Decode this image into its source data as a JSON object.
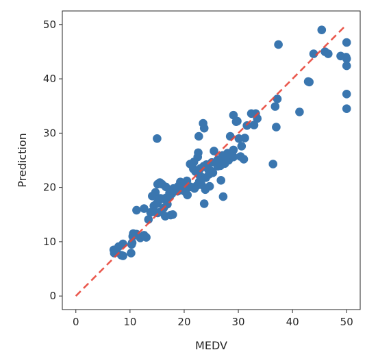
{
  "chart_data": {
    "type": "scatter",
    "title": "",
    "xlabel": "MEDV",
    "ylabel": "Prediction",
    "xlim": [
      -2.5,
      52.5
    ],
    "ylim": [
      -2.5,
      52.5
    ],
    "x_ticks": [
      0,
      10,
      20,
      30,
      40,
      50
    ],
    "y_ticks": [
      0,
      10,
      20,
      30,
      40,
      50
    ],
    "grid": false,
    "legend": "none",
    "colors": {
      "points": "#3a76af",
      "reference_line": "#e8463a"
    },
    "reference_line": {
      "style": "dashed",
      "x": [
        0,
        50
      ],
      "y": [
        0,
        50
      ]
    },
    "series": [
      {
        "x": [
          45.4,
          50.0,
          37.4,
          46.0,
          46.6,
          43.9,
          48.9,
          49.9,
          50.0,
          50.0,
          42.9,
          43.1,
          50.0,
          50.0,
          41.3,
          36.8,
          37.2,
          37.0,
          36.4,
          29.1,
          29.6,
          29.8,
          31.6,
          32.4,
          33.2,
          33.5,
          32.9,
          28.5,
          30.1,
          31.2,
          30.6,
          29.1,
          28.0,
          27.1,
          26.4,
          24.1,
          23.6,
          23.5,
          23.7,
          22.7,
          22.6,
          22.5,
          21.8,
          21.5,
          21.1,
          21.7,
          22.1,
          22.8,
          23.2,
          24.0,
          24.6,
          25.0,
          25.3,
          26.2,
          26.7,
          27.5,
          28.2,
          27.9,
          26.2,
          25.1,
          24.4,
          23.9,
          20.5,
          20.0,
          19.3,
          18.9,
          18.5,
          18.2,
          17.7,
          17.3,
          16.7,
          16.2,
          15.6,
          15.2,
          14.9,
          14.4,
          20.6,
          19.5,
          18.8,
          18.0,
          17.3,
          16.6,
          15.9,
          15.5,
          15.1,
          14.7,
          14.1,
          13.8,
          13.4,
          14.6,
          15.6,
          16.2,
          16.9,
          17.5,
          17.9,
          16.5,
          15.1,
          23.7,
          26.8,
          27.2,
          29.1,
          28.9,
          30.4,
          31.0,
          15.0,
          23.2,
          23.9,
          10.2,
          10.6,
          11.2,
          11.9,
          12.6,
          13.0,
          12.6,
          11.2,
          10.4,
          10.3,
          8.4,
          8.7,
          7.9,
          7.5,
          7.0,
          7.1,
          8.7,
          10.5,
          21.9,
          22.3,
          19.7,
          20.3,
          22.8,
          24.7,
          25.5,
          20.6,
          23.0,
          21.2
        ],
        "y": [
          49.0,
          46.7,
          46.3,
          45.0,
          44.6,
          44.6,
          44.2,
          44.0,
          43.7,
          42.4,
          39.5,
          39.4,
          37.2,
          34.5,
          33.9,
          34.9,
          36.3,
          31.1,
          24.3,
          33.3,
          32.1,
          32.2,
          31.4,
          33.6,
          33.6,
          32.7,
          31.5,
          29.4,
          29.0,
          29.1,
          27.6,
          26.9,
          26.3,
          25.9,
          24.9,
          24.2,
          23.9,
          31.8,
          30.9,
          29.4,
          26.4,
          25.6,
          24.7,
          24.2,
          24.3,
          23.4,
          22.9,
          22.3,
          21.9,
          21.8,
          22.4,
          23.0,
          22.7,
          23.9,
          24.0,
          24.4,
          25.0,
          25.6,
          25.1,
          24.6,
          23.4,
          23.9,
          21.2,
          20.6,
          21.0,
          20.2,
          19.8,
          19.3,
          18.8,
          18.3,
          18.1,
          17.9,
          18.0,
          17.4,
          17.0,
          16.6,
          20.0,
          19.5,
          19.3,
          19.8,
          19.0,
          20.1,
          20.6,
          20.9,
          20.6,
          19.1,
          18.4,
          15.4,
          14.1,
          15.5,
          15.5,
          16.2,
          16.9,
          14.9,
          15.0,
          14.7,
          15.3,
          17.0,
          21.3,
          18.3,
          25.6,
          25.9,
          25.7,
          25.2,
          29.0,
          20.5,
          19.6,
          7.9,
          11.5,
          11.4,
          10.7,
          11.2,
          10.8,
          16.1,
          15.8,
          9.8,
          9.5,
          7.5,
          9.6,
          9.1,
          8.1,
          8.5,
          7.9,
          7.4,
          11.0,
          19.8,
          20.3,
          20.0,
          19.1,
          21.1,
          20.2,
          26.7,
          18.6,
          23.5,
          20.1
        ]
      }
    ]
  }
}
